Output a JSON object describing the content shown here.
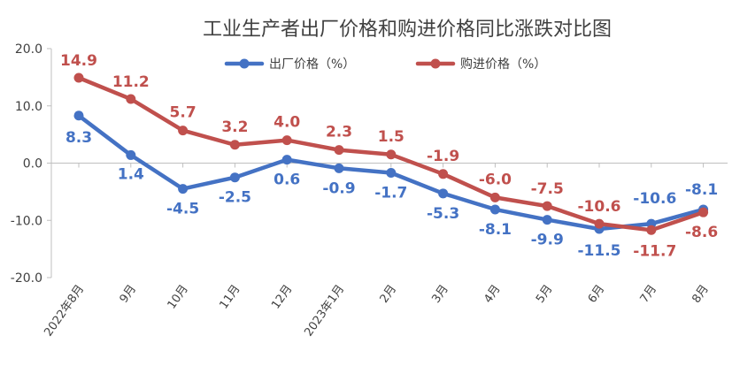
{
  "chart_data": {
    "type": "line",
    "title": "工业生产者出厂价格和购进价格同比涨跌对比图",
    "xlabel": "",
    "ylabel": "",
    "ylim": [
      -20,
      20
    ],
    "yticks": [
      "20.0",
      "10.0",
      "0.0",
      "-10.0",
      "-20.0"
    ],
    "grid": false,
    "legend_position": "top",
    "categories": [
      "2022年8月",
      "9月",
      "10月",
      "11月",
      "12月",
      "2023年1月",
      "2月",
      "3月",
      "4月",
      "5月",
      "6月",
      "7月",
      "8月"
    ],
    "series": [
      {
        "name": "出厂价格（%）",
        "color": "#4472c4",
        "values": [
          8.3,
          1.4,
          -4.5,
          -2.5,
          0.6,
          -0.9,
          -1.7,
          -5.3,
          -8.1,
          -9.9,
          -11.5,
          -10.6,
          -8.1
        ],
        "labels": [
          "8.3",
          "1.4",
          "-4.5",
          "-2.5",
          "0.6",
          "-0.9",
          "-1.7",
          "-5.3",
          "-8.1",
          "-9.9",
          "-11.5",
          "-10.6",
          "-8.1"
        ]
      },
      {
        "name": "购进价格（%）",
        "color": "#c0504d",
        "values": [
          14.9,
          11.2,
          5.7,
          3.2,
          4.0,
          2.3,
          1.5,
          -1.9,
          -6.0,
          -7.5,
          -10.6,
          -11.7,
          -8.6
        ],
        "labels": [
          "14.9",
          "11.2",
          "5.7",
          "3.2",
          "4.0",
          "2.3",
          "1.5",
          "-1.9",
          "-6.0",
          "-7.5",
          "-10.6",
          "-11.7",
          "-8.6"
        ]
      }
    ]
  }
}
